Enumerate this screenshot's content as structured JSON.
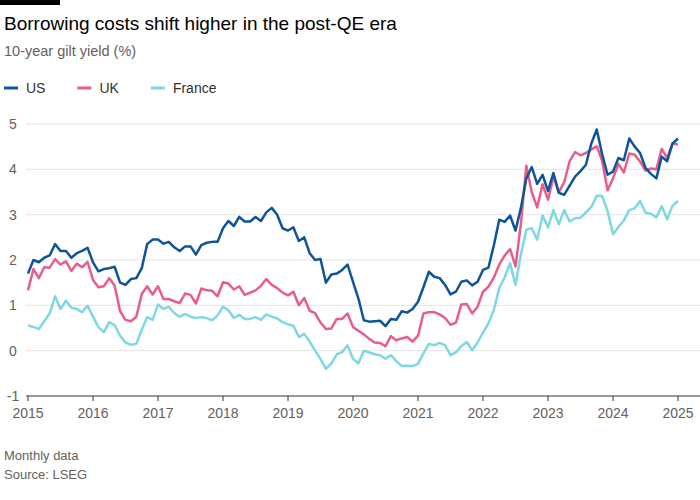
{
  "chart_data": {
    "type": "line",
    "title": "Borrowing costs shift higher in the post-QE era",
    "subtitle": "10-year gilt yield (%)",
    "notes": [
      "Monthly data",
      "Source: LSEG"
    ],
    "categories": [
      "2015",
      null,
      null,
      null,
      null,
      null,
      null,
      null,
      null,
      null,
      null,
      null,
      "2016",
      null,
      null,
      null,
      null,
      null,
      null,
      null,
      null,
      null,
      null,
      null,
      "2017",
      null,
      null,
      null,
      null,
      null,
      null,
      null,
      null,
      null,
      null,
      null,
      "2018",
      null,
      null,
      null,
      null,
      null,
      null,
      null,
      null,
      null,
      null,
      null,
      "2019",
      null,
      null,
      null,
      null,
      null,
      null,
      null,
      null,
      null,
      null,
      null,
      "2020",
      null,
      null,
      null,
      null,
      null,
      null,
      null,
      null,
      null,
      null,
      null,
      "2021",
      null,
      null,
      null,
      null,
      null,
      null,
      null,
      null,
      null,
      null,
      null,
      "2022",
      null,
      null,
      null,
      null,
      null,
      null,
      null,
      null,
      null,
      null,
      null,
      "2023",
      null,
      null,
      null,
      null,
      null,
      null,
      null,
      null,
      null,
      null,
      null,
      "2024",
      null,
      null,
      null,
      null,
      null,
      null,
      null,
      null,
      null,
      null,
      null,
      "2025"
    ],
    "series": [
      {
        "name": "US",
        "color": "#0f5499",
        "values": [
          1.7,
          2.0,
          1.95,
          2.05,
          2.1,
          2.35,
          2.2,
          2.2,
          2.05,
          2.15,
          2.2,
          2.27,
          1.95,
          1.75,
          1.8,
          1.82,
          1.85,
          1.5,
          1.45,
          1.58,
          1.6,
          1.82,
          2.35,
          2.45,
          2.45,
          2.36,
          2.4,
          2.28,
          2.2,
          2.3,
          2.3,
          2.12,
          2.33,
          2.38,
          2.4,
          2.4,
          2.7,
          2.86,
          2.75,
          2.95,
          2.85,
          2.85,
          2.95,
          2.86,
          3.05,
          3.15,
          3.0,
          2.7,
          2.65,
          2.72,
          2.42,
          2.5,
          2.15,
          2.0,
          2.02,
          1.5,
          1.68,
          1.7,
          1.78,
          1.9,
          1.52,
          1.15,
          0.67,
          0.64,
          0.65,
          0.66,
          0.54,
          0.7,
          0.68,
          0.87,
          0.84,
          0.92,
          1.08,
          1.4,
          1.74,
          1.63,
          1.6,
          1.45,
          1.24,
          1.3,
          1.52,
          1.55,
          1.44,
          1.52,
          1.78,
          1.83,
          2.32,
          2.89,
          2.84,
          2.98,
          2.65,
          3.15,
          3.8,
          4.05,
          3.68,
          3.88,
          3.52,
          3.92,
          3.48,
          3.44,
          3.64,
          3.84,
          3.96,
          4.1,
          4.57,
          4.88,
          4.33,
          3.88,
          3.95,
          4.25,
          4.2,
          4.68,
          4.5,
          4.36,
          4.03,
          3.9,
          3.8,
          4.28,
          4.18,
          4.57,
          4.68
        ]
      },
      {
        "name": "UK",
        "color": "#e95d8c",
        "values": [
          1.33,
          1.8,
          1.6,
          1.84,
          1.83,
          2.02,
          1.9,
          1.97,
          1.76,
          1.92,
          1.84,
          1.96,
          1.56,
          1.4,
          1.42,
          1.6,
          1.43,
          0.87,
          0.68,
          0.65,
          0.75,
          1.25,
          1.42,
          1.24,
          1.42,
          1.14,
          1.14,
          1.09,
          1.05,
          1.26,
          1.23,
          1.04,
          1.37,
          1.33,
          1.32,
          1.2,
          1.51,
          1.48,
          1.35,
          1.42,
          1.23,
          1.28,
          1.33,
          1.43,
          1.58,
          1.45,
          1.38,
          1.28,
          1.22,
          1.3,
          1.0,
          1.16,
          0.88,
          0.83,
          0.62,
          0.48,
          0.49,
          0.7,
          0.7,
          0.82,
          0.52,
          0.44,
          0.36,
          0.26,
          0.18,
          0.17,
          0.1,
          0.32,
          0.23,
          0.27,
          0.3,
          0.2,
          0.33,
          0.82,
          0.85,
          0.85,
          0.8,
          0.72,
          0.57,
          0.62,
          1.02,
          1.03,
          0.82,
          0.97,
          1.3,
          1.41,
          1.61,
          1.9,
          2.1,
          2.24,
          1.86,
          2.8,
          4.08,
          3.5,
          3.16,
          3.67,
          3.33,
          3.83,
          3.49,
          3.72,
          4.18,
          4.38,
          4.31,
          4.36,
          4.44,
          4.51,
          4.18,
          3.54,
          3.8,
          4.12,
          3.93,
          4.35,
          4.32,
          4.17,
          3.97,
          4.02,
          4.0,
          4.45,
          4.25,
          4.57,
          4.55
        ]
      },
      {
        "name": "France",
        "color": "#7dd8e2",
        "values": [
          0.56,
          0.52,
          0.48,
          0.65,
          0.82,
          1.2,
          0.92,
          1.1,
          0.95,
          0.92,
          0.85,
          0.99,
          0.75,
          0.52,
          0.41,
          0.63,
          0.56,
          0.33,
          0.18,
          0.13,
          0.15,
          0.46,
          0.74,
          0.68,
          1.02,
          0.92,
          0.97,
          0.83,
          0.75,
          0.81,
          0.75,
          0.72,
          0.74,
          0.72,
          0.67,
          0.78,
          0.97,
          0.89,
          0.72,
          0.79,
          0.7,
          0.7,
          0.74,
          0.68,
          0.8,
          0.75,
          0.71,
          0.63,
          0.58,
          0.55,
          0.3,
          0.37,
          0.2,
          0.0,
          -0.18,
          -0.4,
          -0.28,
          -0.08,
          -0.03,
          0.12,
          -0.18,
          -0.28,
          0.0,
          -0.04,
          -0.08,
          -0.1,
          -0.18,
          -0.1,
          -0.23,
          -0.34,
          -0.33,
          -0.34,
          -0.29,
          -0.06,
          0.15,
          0.12,
          0.17,
          0.12,
          -0.1,
          -0.04,
          0.1,
          0.19,
          0.01,
          0.18,
          0.4,
          0.6,
          0.9,
          1.38,
          1.62,
          1.93,
          1.45,
          2.12,
          2.67,
          2.7,
          2.45,
          2.98,
          2.72,
          3.1,
          2.79,
          3.1,
          2.85,
          2.92,
          2.93,
          3.05,
          3.17,
          3.42,
          3.41,
          3.08,
          2.57,
          2.73,
          2.87,
          3.1,
          3.14,
          3.3,
          3.04,
          3.02,
          2.94,
          3.19,
          2.9,
          3.2,
          3.3
        ]
      }
    ],
    "ylim": [
      -1,
      5
    ],
    "yticks": [
      -1,
      0,
      1,
      2,
      3,
      4,
      5
    ],
    "grid": true,
    "legend": "top-left"
  }
}
